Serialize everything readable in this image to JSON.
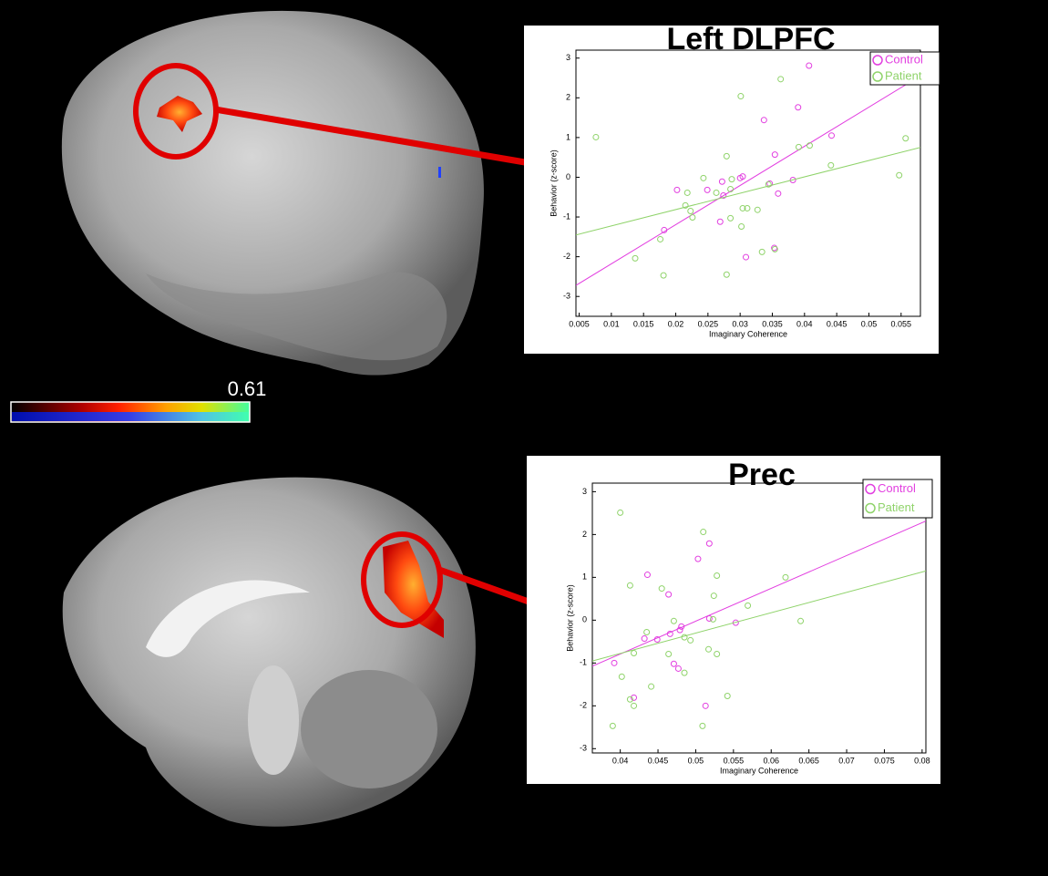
{
  "colorbar": {
    "label": "0.61"
  },
  "chart_data": [
    {
      "type": "scatter",
      "title": "Left DLPFC",
      "x_label": "Imaginary Coherence",
      "y_label": "Behavior (z-score)",
      "xlim": [
        0.0045,
        0.058
      ],
      "ylim": [
        -3.5,
        3.2
      ],
      "xticks": [
        0.005,
        0.01,
        0.015,
        0.02,
        0.025,
        0.03,
        0.035,
        0.04,
        0.045,
        0.05,
        0.055
      ],
      "yticks": [
        -3,
        -2,
        -1,
        0,
        1,
        2,
        3
      ],
      "legend": "upper right",
      "fit_lines": true,
      "series": [
        {
          "name": "Control",
          "color": "#e23fe0",
          "x": [
            0.0407,
            0.0337,
            0.039,
            0.0442,
            0.0354,
            0.0359,
            0.0346,
            0.0272,
            0.03,
            0.0304,
            0.0202,
            0.0249,
            0.0269,
            0.0353,
            0.0309,
            0.0182,
            0.0274,
            0.0382
          ],
          "values": [
            2.81,
            1.44,
            1.76,
            1.05,
            0.57,
            -0.41,
            -0.16,
            -0.11,
            -0.02,
            0.02,
            -0.32,
            -0.32,
            -1.12,
            -1.78,
            -2.01,
            -1.33,
            -0.46,
            -0.07
          ]
        },
        {
          "name": "Patient",
          "color": "#8fd36a",
          "x": [
            0.0076,
            0.0301,
            0.0363,
            0.0391,
            0.0408,
            0.0441,
            0.0547,
            0.0557,
            0.0279,
            0.0243,
            0.0287,
            0.0285,
            0.0218,
            0.0223,
            0.0226,
            0.0215,
            0.0263,
            0.0304,
            0.0311,
            0.0327,
            0.0302,
            0.0285,
            0.0176,
            0.0137,
            0.0181,
            0.0279,
            0.0334,
            0.0354,
            0.0344
          ],
          "values": [
            1.01,
            2.04,
            2.47,
            0.76,
            0.8,
            0.3,
            0.05,
            0.98,
            0.53,
            -0.02,
            -0.05,
            -0.3,
            -0.39,
            -0.85,
            -1.01,
            -0.71,
            -0.39,
            -0.78,
            -0.78,
            -0.82,
            -1.24,
            -1.03,
            -1.56,
            -2.04,
            -2.47,
            -2.45,
            -1.88,
            -1.81,
            -0.18
          ]
        }
      ]
    },
    {
      "type": "scatter",
      "title": "Prec",
      "x_label": "Imaginary Coherence",
      "y_label": "Behavior (z-score)",
      "xlim": [
        0.0363,
        0.0805
      ],
      "ylim": [
        -3.1,
        3.2
      ],
      "xticks": [
        0.04,
        0.045,
        0.05,
        0.055,
        0.06,
        0.065,
        0.07,
        0.075,
        0.08
      ],
      "yticks": [
        -3,
        -2,
        -1,
        0,
        1,
        2,
        3
      ],
      "legend": "upper right",
      "fit_lines": true,
      "series": [
        {
          "name": "Control",
          "color": "#e23fe0",
          "x": [
            0.0503,
            0.0518,
            0.0436,
            0.0464,
            0.0518,
            0.0553,
            0.0481,
            0.0479,
            0.0466,
            0.0449,
            0.0432,
            0.0471,
            0.0477,
            0.0418,
            0.0513,
            0.0392
          ],
          "values": [
            1.43,
            1.79,
            1.06,
            0.6,
            0.04,
            -0.06,
            -0.15,
            -0.23,
            -0.32,
            -0.45,
            -0.43,
            -1.02,
            -1.13,
            -1.81,
            -2.0,
            -1.0
          ]
        },
        {
          "name": "Patient",
          "color": "#8fd36a",
          "x": [
            0.04,
            0.051,
            0.0413,
            0.0528,
            0.0569,
            0.0619,
            0.0639,
            0.0524,
            0.0455,
            0.0471,
            0.0435,
            0.0485,
            0.0493,
            0.0523,
            0.0517,
            0.0528,
            0.0464,
            0.0418,
            0.0485,
            0.0402,
            0.0441,
            0.0542,
            0.0413,
            0.0418,
            0.039,
            0.0509
          ],
          "values": [
            2.51,
            2.06,
            0.81,
            1.04,
            0.34,
            1.0,
            -0.02,
            0.57,
            0.74,
            -0.02,
            -0.28,
            -0.4,
            -0.47,
            0.02,
            -0.68,
            -0.79,
            -0.79,
            -0.77,
            -1.23,
            -1.32,
            -1.55,
            -1.77,
            -1.85,
            -2.0,
            -2.47,
            -2.47
          ]
        }
      ]
    }
  ]
}
